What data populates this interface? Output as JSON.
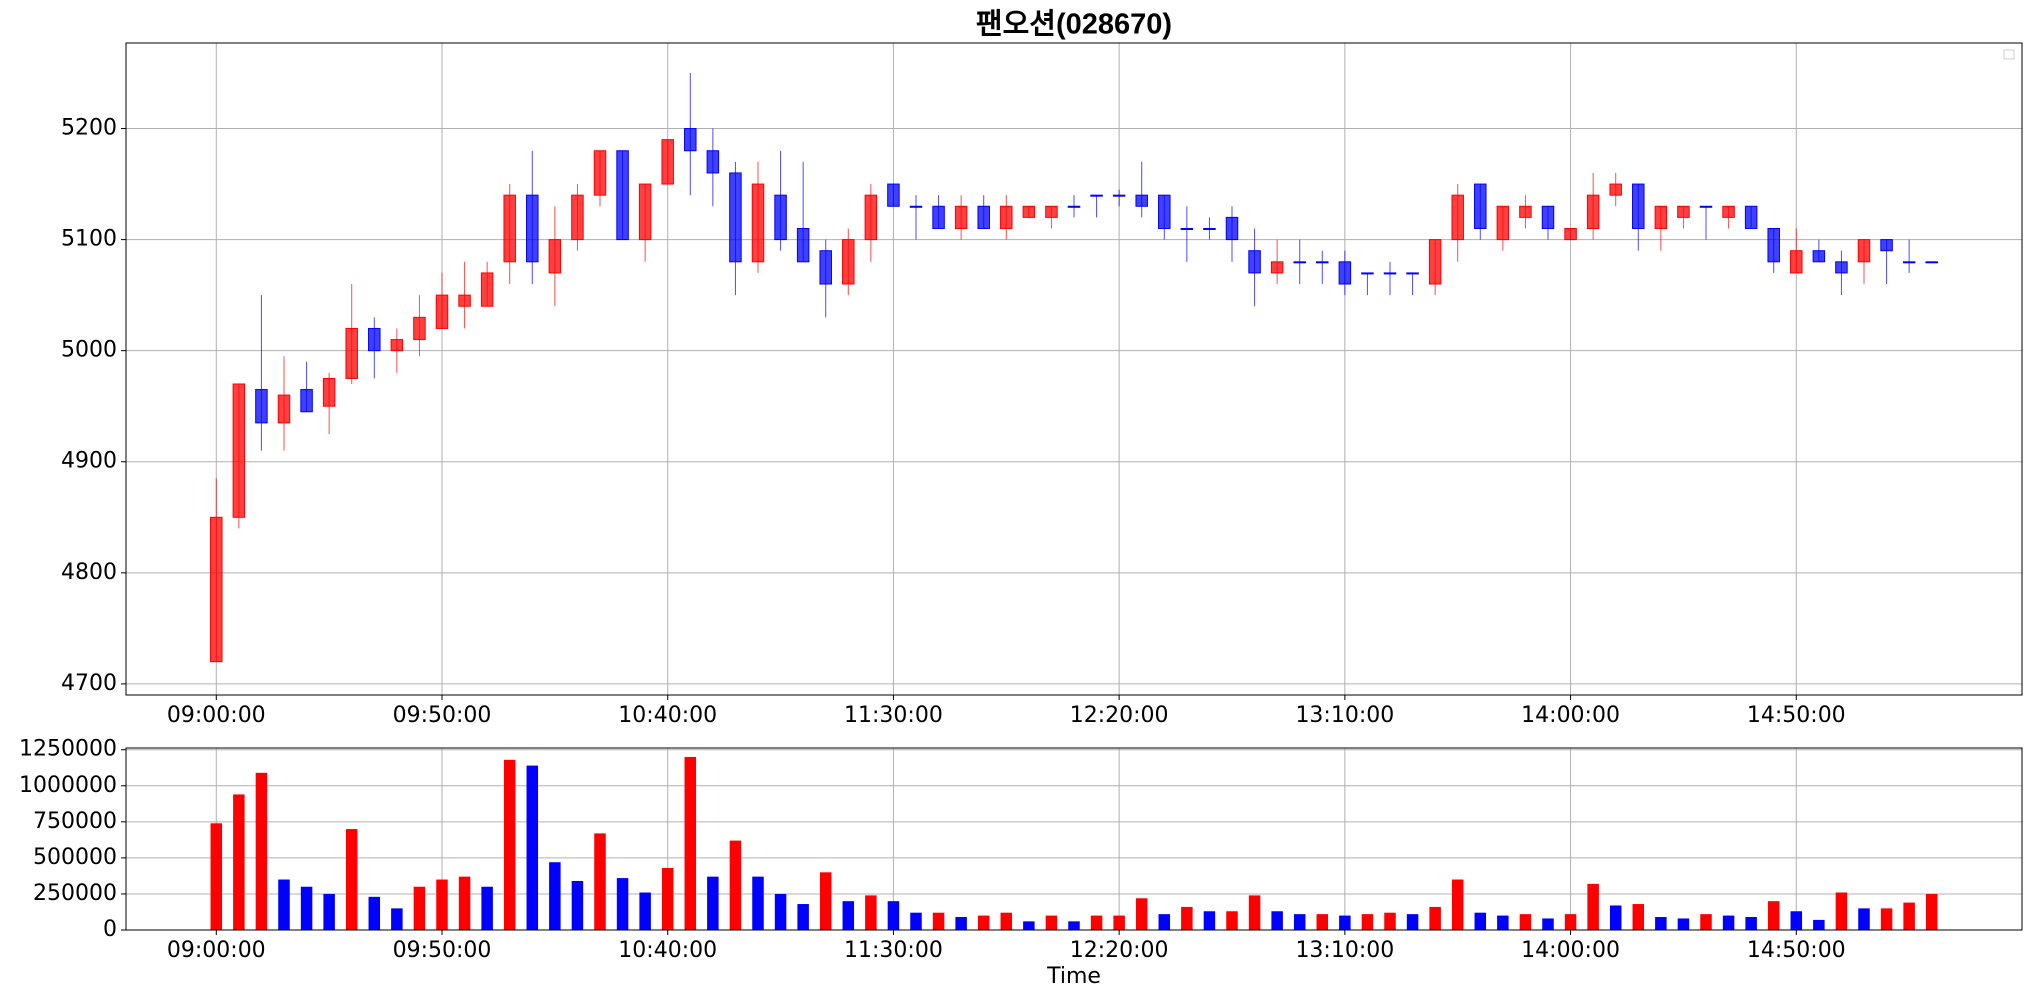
{
  "chart_data": [
    {
      "type": "candlestick",
      "title": "팬오션(028670)",
      "x": [
        "09:00:00",
        "09:05:00",
        "09:10:00",
        "09:15:00",
        "09:20:00",
        "09:25:00",
        "09:30:00",
        "09:35:00",
        "09:40:00",
        "09:45:00",
        "09:50:00",
        "09:55:00",
        "10:00:00",
        "10:05:00",
        "10:10:00",
        "10:15:00",
        "10:20:00",
        "10:25:00",
        "10:30:00",
        "10:35:00",
        "10:40:00",
        "10:45:00",
        "10:50:00",
        "10:55:00",
        "11:00:00",
        "11:05:00",
        "11:10:00",
        "11:15:00",
        "11:20:00",
        "11:25:00",
        "11:30:00",
        "11:35:00",
        "11:40:00",
        "11:45:00",
        "11:50:00",
        "11:55:00",
        "12:00:00",
        "12:05:00",
        "12:10:00",
        "12:15:00",
        "12:20:00",
        "12:25:00",
        "12:30:00",
        "12:35:00",
        "12:40:00",
        "12:45:00",
        "12:50:00",
        "12:55:00",
        "13:00:00",
        "13:05:00",
        "13:10:00",
        "13:15:00",
        "13:20:00",
        "13:25:00",
        "13:30:00",
        "13:35:00",
        "13:40:00",
        "13:45:00",
        "13:50:00",
        "13:55:00",
        "14:00:00",
        "14:05:00",
        "14:10:00",
        "14:15:00",
        "14:20:00",
        "14:25:00",
        "14:30:00",
        "14:35:00",
        "14:40:00",
        "14:45:00",
        "14:50:00",
        "14:55:00",
        "15:00:00",
        "15:05:00",
        "15:10:00",
        "15:15:00",
        "15:20:00"
      ],
      "ohlc": [
        [
          4720,
          4885,
          4720,
          4850
        ],
        [
          4850,
          4970,
          4840,
          4970
        ],
        [
          4965,
          5050,
          4910,
          4935
        ],
        [
          4935,
          4995,
          4910,
          4960
        ],
        [
          4965,
          4990,
          4945,
          4945
        ],
        [
          4950,
          4980,
          4925,
          4975
        ],
        [
          4975,
          5060,
          4970,
          5020
        ],
        [
          5020,
          5030,
          4975,
          5000
        ],
        [
          5000,
          5020,
          4980,
          5010
        ],
        [
          5010,
          5050,
          4995,
          5030
        ],
        [
          5020,
          5070,
          5020,
          5050
        ],
        [
          5040,
          5080,
          5020,
          5050
        ],
        [
          5040,
          5080,
          5040,
          5070
        ],
        [
          5080,
          5150,
          5060,
          5140
        ],
        [
          5140,
          5180,
          5060,
          5080
        ],
        [
          5070,
          5130,
          5040,
          5100
        ],
        [
          5100,
          5150,
          5090,
          5140
        ],
        [
          5140,
          5180,
          5130,
          5180
        ],
        [
          5180,
          5180,
          5100,
          5100
        ],
        [
          5100,
          5150,
          5080,
          5150
        ],
        [
          5150,
          5190,
          5150,
          5190
        ],
        [
          5200,
          5250,
          5140,
          5180
        ],
        [
          5180,
          5200,
          5130,
          5160
        ],
        [
          5160,
          5170,
          5050,
          5080
        ],
        [
          5080,
          5170,
          5070,
          5150
        ],
        [
          5140,
          5180,
          5090,
          5100
        ],
        [
          5110,
          5170,
          5080,
          5080
        ],
        [
          5090,
          5100,
          5030,
          5060
        ],
        [
          5060,
          5110,
          5050,
          5100
        ],
        [
          5100,
          5150,
          5080,
          5140
        ],
        [
          5150,
          5150,
          5130,
          5130
        ],
        [
          5130,
          5140,
          5100,
          5130
        ],
        [
          5130,
          5140,
          5110,
          5110
        ],
        [
          5110,
          5140,
          5100,
          5130
        ],
        [
          5130,
          5140,
          5110,
          5110
        ],
        [
          5110,
          5140,
          5100,
          5130
        ],
        [
          5120,
          5130,
          5120,
          5130
        ],
        [
          5120,
          5130,
          5110,
          5130
        ],
        [
          5130,
          5140,
          5120,
          5130
        ],
        [
          5140,
          5140,
          5120,
          5140
        ],
        [
          5140,
          5145,
          5130,
          5140
        ],
        [
          5140,
          5170,
          5120,
          5130
        ],
        [
          5140,
          5140,
          5100,
          5110
        ],
        [
          5110,
          5130,
          5080,
          5110
        ],
        [
          5110,
          5120,
          5100,
          5110
        ],
        [
          5120,
          5130,
          5080,
          5100
        ],
        [
          5090,
          5110,
          5040,
          5070
        ],
        [
          5070,
          5100,
          5060,
          5080
        ],
        [
          5080,
          5100,
          5060,
          5080
        ],
        [
          5080,
          5090,
          5060,
          5080
        ],
        [
          5080,
          5090,
          5050,
          5060
        ],
        [
          5070,
          5070,
          5050,
          5070
        ],
        [
          5070,
          5080,
          5050,
          5070
        ],
        [
          5070,
          5070,
          5050,
          5070
        ],
        [
          5060,
          5100,
          5050,
          5100
        ],
        [
          5100,
          5150,
          5080,
          5140
        ],
        [
          5150,
          5150,
          5100,
          5110
        ],
        [
          5100,
          5130,
          5090,
          5130
        ],
        [
          5120,
          5140,
          5110,
          5130
        ],
        [
          5130,
          5130,
          5100,
          5110
        ],
        [
          5100,
          5110,
          5100,
          5110
        ],
        [
          5110,
          5160,
          5100,
          5140
        ],
        [
          5140,
          5160,
          5130,
          5150
        ],
        [
          5150,
          5150,
          5090,
          5110
        ],
        [
          5110,
          5130,
          5090,
          5130
        ],
        [
          5120,
          5130,
          5110,
          5130
        ],
        [
          5130,
          5130,
          5100,
          5130
        ],
        [
          5120,
          5130,
          5110,
          5130
        ],
        [
          5130,
          5130,
          5110,
          5110
        ],
        [
          5110,
          5110,
          5070,
          5080
        ],
        [
          5070,
          5110,
          5070,
          5090
        ],
        [
          5090,
          5100,
          5080,
          5080
        ],
        [
          5080,
          5090,
          5050,
          5070
        ],
        [
          5080,
          5100,
          5060,
          5100
        ],
        [
          5100,
          5100,
          5060,
          5090
        ],
        [
          5080,
          5100,
          5070,
          5080
        ],
        [
          5080,
          5080,
          5080,
          5080
        ]
      ],
      "up_color": "red",
      "down_color": "blue",
      "xlim": [
        -4,
        80
      ],
      "xticks": [
        0,
        10,
        20,
        30,
        40,
        50,
        60,
        70
      ],
      "ylim": [
        4690,
        5277
      ],
      "yticks": [
        4700,
        4800,
        4900,
        5000,
        5100,
        5200
      ],
      "grid": true,
      "legend": "upper right"
    },
    {
      "type": "bar",
      "xlabel": "Time",
      "values": [
        740000,
        940000,
        1090000,
        350000,
        300000,
        250000,
        700000,
        230000,
        150000,
        300000,
        350000,
        370000,
        300000,
        1180000,
        1140000,
        470000,
        340000,
        670000,
        360000,
        260000,
        430000,
        1200000,
        370000,
        620000,
        370000,
        250000,
        180000,
        400000,
        200000,
        240000,
        200000,
        120000,
        120000,
        90000,
        100000,
        120000,
        60000,
        100000,
        60000,
        100000,
        100000,
        220000,
        110000,
        160000,
        130000,
        130000,
        240000,
        130000,
        110000,
        110000,
        100000,
        110000,
        120000,
        110000,
        160000,
        350000,
        120000,
        100000,
        110000,
        80000,
        110000,
        320000,
        170000,
        180000,
        90000,
        80000,
        110000,
        100000,
        90000,
        200000,
        130000,
        70000,
        260000,
        150000,
        150000,
        190000,
        250000
      ],
      "colors": [
        "red",
        "red",
        "red",
        "blue",
        "blue",
        "blue",
        "red",
        "blue",
        "blue",
        "red",
        "red",
        "red",
        "blue",
        "red",
        "blue",
        "blue",
        "blue",
        "red",
        "blue",
        "blue",
        "red",
        "red",
        "blue",
        "red",
        "blue",
        "blue",
        "blue",
        "red",
        "blue",
        "red",
        "blue",
        "blue",
        "red",
        "blue",
        "red",
        "red",
        "blue",
        "red",
        "blue",
        "red",
        "red",
        "red",
        "blue",
        "red",
        "blue",
        "red",
        "red",
        "blue",
        "blue",
        "red",
        "blue",
        "red",
        "red",
        "blue",
        "red",
        "red",
        "blue",
        "blue",
        "red",
        "blue",
        "red",
        "red",
        "blue",
        "red",
        "blue",
        "blue",
        "red",
        "blue",
        "blue",
        "red",
        "blue",
        "blue",
        "red",
        "blue",
        "red",
        "red",
        "red"
      ],
      "xlim": [
        -4,
        80
      ],
      "xticks": [
        0,
        10,
        20,
        30,
        40,
        50,
        60,
        70
      ],
      "ylim": [
        0,
        1262000
      ],
      "yticks": [
        0,
        250000,
        500000,
        750000,
        1000000,
        1250000
      ],
      "grid": true
    }
  ]
}
